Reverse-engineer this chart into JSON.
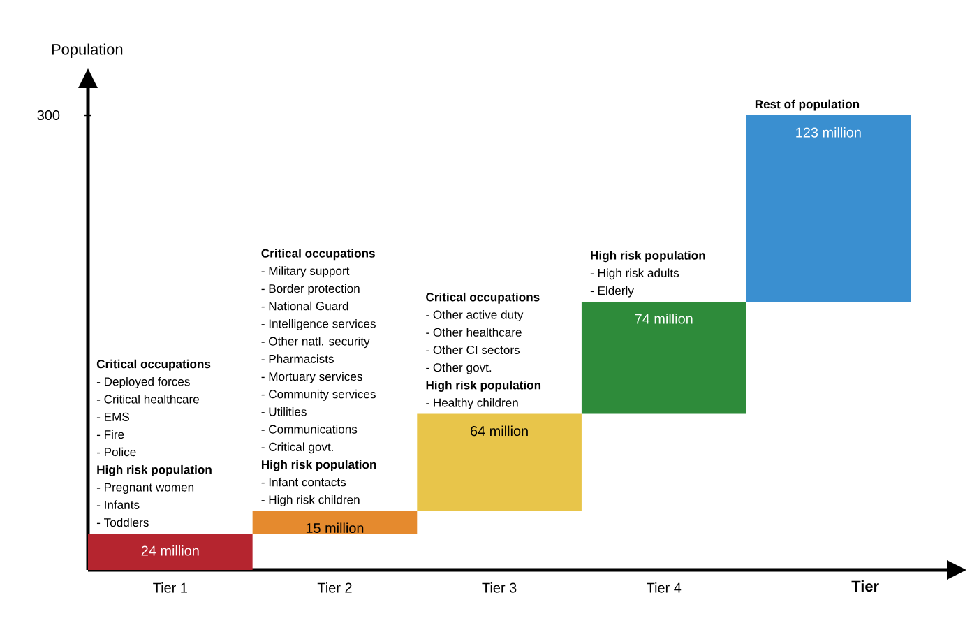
{
  "chart_data": {
    "type": "bar",
    "xlabel": "Tier",
    "ylabel": "Population",
    "categories": [
      "Tier 1",
      "Tier 2",
      "Tier 3",
      "Tier 4",
      null
    ],
    "values": [
      24,
      15,
      64,
      74,
      123
    ],
    "base": [
      0,
      24,
      39,
      103,
      177
    ],
    "colors": [
      "#b5252f",
      "#e58a2e",
      "#e8c54a",
      "#2e8b3a",
      "#3a8fd0"
    ],
    "value_labels": [
      "24 million",
      "15 million",
      "64 million",
      "74 million",
      "123 million"
    ],
    "ylim": [
      0,
      318
    ],
    "yticks": [
      300
    ],
    "annotations": [
      "**Critical occupations**",
      "- Deployed forces",
      "- Critical healthcare",
      "- EMS",
      "- Fire",
      "- Police",
      "**High risk population**",
      "- Pregnant women",
      "- Infants",
      "- Toddlers",
      "**Critical occupations**",
      "- Military support",
      "- Border protection",
      "- National Guard",
      "- Intelligence services",
      "- Other natl. security",
      "- Pharmacists",
      "- Mortuary services",
      "- Community services",
      "- Utilities",
      "- Communications",
      "- Critical govt.",
      "**High risk population**",
      "- Infant contacts",
      "- High risk children",
      "**Critical occupations**",
      "- Other active duty",
      "- Other healthcare",
      "- Other CI sectors",
      "- Other govt.",
      "**High risk population**",
      "- Healthy children",
      "**High risk population**",
      "- High risk adults",
      "- Elderly",
      "**Rest of population**"
    ]
  }
}
